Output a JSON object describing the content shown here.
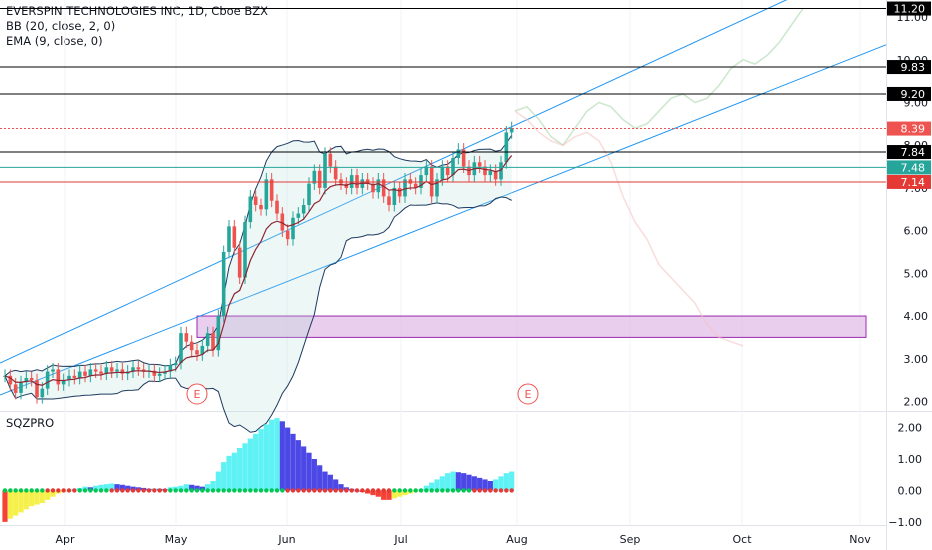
{
  "legend": {
    "title": "EVERSPIN TECHNOLOGIES INC, 1D, Cboe BZX",
    "bb": "BB (20, close, 2, 0)",
    "ema": "EMA (9, close, 0)"
  },
  "sqz_label": "SQZPRO",
  "chart_data": {
    "type": "candlestick",
    "title": "EVERSPIN TECHNOLOGIES INC, 1D, Cboe BZX",
    "x_labels": [
      "Apr",
      "May",
      "Jun",
      "Jul",
      "Aug",
      "Sep",
      "Oct",
      "Nov"
    ],
    "price_axis": {
      "ticks": [
        "2.00",
        "3.00",
        "4.00",
        "5.00",
        "6.00",
        "7.00",
        "8.00",
        "9.00",
        "10.00",
        "11.00"
      ],
      "ylim": [
        1.8,
        11.4
      ]
    },
    "price_tags": [
      {
        "value": "11.20",
        "bg": "#000000",
        "fg": "#ffffff"
      },
      {
        "value": "9.83",
        "bg": "#000000",
        "fg": "#ffffff"
      },
      {
        "value": "9.20",
        "bg": "#000000",
        "fg": "#ffffff"
      },
      {
        "value": "8.39",
        "bg": "#ef5350",
        "fg": "#ffffff"
      },
      {
        "value": "7.84",
        "bg": "#000000",
        "fg": "#ffffff"
      },
      {
        "value": "7.48",
        "bg": "#26a69a",
        "fg": "#ffffff"
      },
      {
        "value": "7.14",
        "bg": "#e53935",
        "fg": "#ffffff"
      }
    ],
    "horizontal_levels": [
      {
        "value": 11.2,
        "color": "#000000"
      },
      {
        "value": 9.83,
        "color": "#000000"
      },
      {
        "value": 9.2,
        "color": "#000000"
      },
      {
        "value": 8.39,
        "color": "#ef5350",
        "dotted": true
      },
      {
        "value": 7.84,
        "color": "#000000"
      },
      {
        "value": 7.48,
        "color": "#26a69a"
      },
      {
        "value": 7.14,
        "color": "#e53935"
      }
    ],
    "demand_zone": {
      "low": 3.5,
      "high": 4.0,
      "color": "#9c27b0"
    },
    "earnings_markers": [
      "E",
      "E"
    ],
    "candles_close": [
      2.6,
      2.4,
      2.2,
      2.45,
      2.55,
      2.5,
      2.1,
      2.3,
      2.7,
      2.75,
      2.4,
      2.5,
      2.6,
      2.55,
      2.7,
      2.6,
      2.75,
      2.7,
      2.65,
      2.8,
      2.7,
      2.75,
      2.65,
      2.7,
      2.8,
      2.75,
      2.7,
      2.72,
      2.6,
      2.65,
      2.7,
      2.85,
      2.9,
      3.6,
      3.4,
      3.2,
      3.1,
      3.3,
      3.6,
      3.2,
      4.0,
      5.5,
      6.1,
      5.6,
      4.9,
      6.2,
      6.8,
      6.6,
      6.5,
      7.2,
      6.7,
      6.4,
      6.0,
      5.8,
      6.3,
      6.4,
      6.6,
      7.1,
      7.4,
      7.0,
      7.8,
      7.5,
      7.2,
      7.1,
      7.0,
      7.3,
      7.0,
      7.2,
      7.1,
      6.9,
      7.2,
      6.8,
      6.6,
      7.0,
      6.8,
      7.2,
      7.1,
      7.0,
      7.3,
      7.5,
      6.8,
      7.2,
      7.5,
      7.3,
      7.7,
      7.9,
      7.5,
      7.3,
      7.6,
      7.5,
      7.3,
      7.4,
      7.2,
      7.6,
      8.3,
      8.4
    ],
    "ema9": [
      2.6,
      2.55,
      2.45,
      2.45,
      2.47,
      2.48,
      2.4,
      2.38,
      2.45,
      2.51,
      2.49,
      2.49,
      2.51,
      2.52,
      2.55,
      2.56,
      2.6,
      2.62,
      2.62,
      2.66,
      2.67,
      2.68,
      2.68,
      2.68,
      2.71,
      2.72,
      2.71,
      2.71,
      2.69,
      2.68,
      2.69,
      2.72,
      2.75,
      2.92,
      3.02,
      3.05,
      3.06,
      3.1,
      3.2,
      3.2,
      3.36,
      3.79,
      4.25,
      4.52,
      4.6,
      4.92,
      5.3,
      5.56,
      5.75,
      6.04,
      6.17,
      6.22,
      6.18,
      6.1,
      6.14,
      6.19,
      6.27,
      6.44,
      6.63,
      6.7,
      6.92,
      7.03,
      7.07,
      7.08,
      7.06,
      7.11,
      7.09,
      7.11,
      7.11,
      7.07,
      7.1,
      7.04,
      6.95,
      6.96,
      6.93,
      6.98,
      7.0,
      7.0,
      7.06,
      7.15,
      7.08,
      7.11,
      7.19,
      7.21,
      7.31,
      7.43,
      7.44,
      7.41,
      7.45,
      7.46,
      7.43,
      7.42,
      7.38,
      7.42,
      7.6,
      7.76
    ],
    "forecast_green": [
      8.8,
      8.9,
      8.6,
      8.2,
      8.0,
      8.4,
      8.8,
      9.0,
      8.9,
      8.6,
      8.4,
      8.5,
      8.8,
      9.1,
      9.2,
      9.0,
      9.1,
      9.4,
      9.8,
      10.0,
      9.9,
      10.1,
      10.4,
      10.8,
      11.2
    ],
    "forecast_red": [
      8.8,
      8.6,
      8.3,
      8.1,
      8.0,
      8.2,
      8.3,
      8.1,
      7.6,
      6.8,
      6.2,
      5.8,
      5.2,
      4.9,
      4.6,
      4.3,
      3.8,
      3.5,
      3.4,
      3.3
    ],
    "squeeze_axis": {
      "ticks": [
        "2.00",
        "1.00",
        "0.00",
        "−1.00"
      ],
      "ylim": [
        -1.1,
        2.4
      ]
    },
    "squeeze_momentum": [
      -1.0,
      -0.9,
      -0.8,
      -0.7,
      -0.6,
      -0.5,
      -0.45,
      -0.4,
      -0.3,
      -0.2,
      -0.1,
      -0.05,
      0.0,
      0.05,
      0.08,
      0.12,
      0.1,
      0.15,
      0.18,
      0.2,
      0.22,
      0.2,
      0.18,
      0.15,
      0.12,
      0.1,
      0.08,
      0.05,
      0.06,
      0.05,
      0.04,
      0.1,
      0.12,
      0.15,
      0.2,
      0.18,
      0.15,
      0.12,
      0.2,
      0.3,
      0.6,
      0.9,
      1.1,
      1.2,
      1.35,
      1.5,
      1.65,
      1.8,
      1.95,
      2.1,
      2.25,
      2.3,
      2.2,
      2.0,
      1.8,
      1.6,
      1.4,
      1.2,
      1.0,
      0.8,
      0.6,
      0.5,
      0.35,
      0.2,
      0.1,
      0.05,
      0.0,
      -0.05,
      -0.1,
      -0.15,
      -0.2,
      -0.3,
      -0.3,
      -0.25,
      -0.2,
      -0.15,
      -0.1,
      -0.05,
      0.05,
      0.15,
      0.25,
      0.35,
      0.45,
      0.55,
      0.6,
      0.58,
      0.55,
      0.5,
      0.45,
      0.4,
      0.35,
      0.3,
      0.35,
      0.45,
      0.55,
      0.6
    ]
  }
}
